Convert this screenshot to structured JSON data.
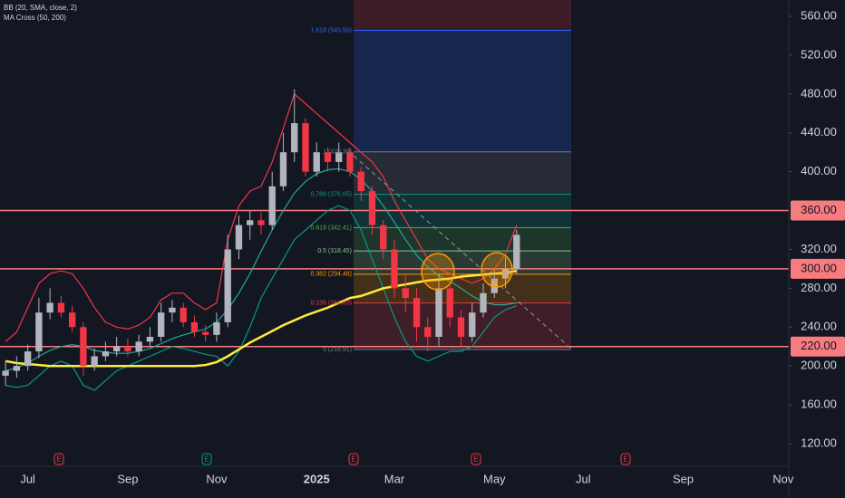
{
  "chart_data": {
    "type": "candlestick",
    "legend": [
      "BB (20, SMA, close, 2)",
      "MA Cross (50, 200)"
    ],
    "categories": [
      null,
      null,
      "Jul",
      null,
      null,
      null,
      null,
      null,
      null,
      null,
      null,
      "Sep",
      null,
      null,
      null,
      null,
      null,
      null,
      null,
      "Nov",
      null,
      null,
      null,
      null,
      null,
      null,
      null,
      null,
      "2025",
      null,
      null,
      null,
      null,
      null,
      null,
      "Mar",
      null,
      null,
      null,
      null,
      null,
      null,
      null,
      null,
      "May",
      null,
      null,
      null,
      null,
      null,
      null,
      null,
      "Jul",
      null,
      null,
      null,
      null,
      null,
      null,
      null,
      null,
      "Sep",
      null,
      null,
      null,
      null,
      null,
      null,
      null,
      null,
      "Nov"
    ],
    "open": [
      190,
      195,
      200,
      215,
      255,
      265,
      255,
      240,
      200,
      210,
      215,
      220,
      215,
      225,
      230,
      255,
      260,
      245,
      235,
      232,
      245,
      320,
      345,
      350,
      345,
      385,
      420,
      450,
      400,
      420,
      410,
      420,
      400,
      380,
      345,
      320,
      280,
      270,
      240,
      230,
      280,
      250,
      230,
      255,
      275,
      290,
      300,
      null,
      null,
      null,
      null,
      null,
      null,
      null,
      null,
      null,
      null,
      null,
      null,
      null,
      null,
      null,
      null,
      null,
      null,
      null,
      null,
      null,
      null,
      null,
      null
    ],
    "high": [
      205,
      210,
      222,
      270,
      280,
      272,
      262,
      245,
      218,
      225,
      230,
      228,
      232,
      240,
      265,
      268,
      265,
      252,
      242,
      255,
      335,
      355,
      360,
      358,
      400,
      440,
      485,
      455,
      430,
      425,
      430,
      425,
      405,
      385,
      350,
      330,
      295,
      280,
      250,
      295,
      285,
      258,
      265,
      285,
      300,
      312,
      340,
      null,
      null,
      null,
      null,
      null,
      null,
      null,
      null,
      null,
      null,
      null,
      null,
      null,
      null,
      null,
      null,
      null,
      null,
      null,
      null,
      null,
      null,
      null,
      null
    ],
    "low": [
      180,
      188,
      195,
      208,
      248,
      250,
      235,
      190,
      195,
      205,
      210,
      210,
      210,
      220,
      225,
      245,
      240,
      230,
      225,
      225,
      240,
      310,
      330,
      335,
      340,
      380,
      410,
      395,
      395,
      400,
      400,
      395,
      370,
      335,
      310,
      270,
      255,
      225,
      215,
      220,
      240,
      220,
      225,
      250,
      270,
      280,
      295,
      null,
      null,
      null,
      null,
      null,
      null,
      null,
      null,
      null,
      null,
      null,
      null,
      null,
      null,
      null,
      null,
      null,
      null,
      null,
      null,
      null,
      null,
      null,
      null
    ],
    "close": [
      195,
      200,
      215,
      255,
      265,
      255,
      240,
      200,
      210,
      215,
      220,
      215,
      225,
      230,
      255,
      260,
      245,
      235,
      232,
      245,
      320,
      345,
      350,
      345,
      385,
      420,
      450,
      400,
      420,
      410,
      420,
      400,
      380,
      345,
      320,
      280,
      270,
      240,
      230,
      280,
      250,
      230,
      255,
      275,
      290,
      300,
      335,
      null,
      null,
      null,
      null,
      null,
      null,
      null,
      null,
      null,
      null,
      null,
      null,
      null,
      null,
      null,
      null,
      null,
      null,
      null,
      null,
      null,
      null,
      null,
      null
    ],
    "up_color": "#b2b5be",
    "down_color": "#f23645",
    "overlays": [
      {
        "color": "#f23645",
        "values": [
          225,
          235,
          260,
          285,
          295,
          298,
          295,
          280,
          260,
          245,
          240,
          238,
          242,
          250,
          268,
          275,
          275,
          265,
          258,
          265,
          330,
          365,
          380,
          385,
          410,
          445,
          480,
          470,
          460,
          450,
          440,
          430,
          420,
          410,
          395,
          370,
          350,
          330,
          310,
          300,
          295,
          290,
          285,
          290,
          300,
          315,
          345,
          null,
          null,
          null,
          null,
          null,
          null,
          null,
          null,
          null,
          null,
          null,
          null,
          null,
          null,
          null,
          null,
          null,
          null,
          null,
          null,
          null,
          null,
          null,
          null
        ]
      },
      {
        "color": "#089981",
        "values": [
          180,
          178,
          180,
          190,
          200,
          205,
          200,
          180,
          175,
          185,
          195,
          200,
          205,
          210,
          215,
          220,
          218,
          215,
          212,
          210,
          200,
          215,
          240,
          270,
          290,
          310,
          330,
          340,
          350,
          360,
          365,
          360,
          340,
          310,
          280,
          250,
          225,
          210,
          205,
          210,
          215,
          215,
          220,
          235,
          250,
          258,
          262,
          null,
          null,
          null,
          null,
          null,
          null,
          null,
          null,
          null,
          null,
          null,
          null,
          null,
          null,
          null,
          null,
          null,
          null,
          null,
          null,
          null,
          null,
          null,
          null
        ]
      },
      {
        "color": "#22ab94",
        "values": [
          195,
          198,
          203,
          210,
          216,
          220,
          222,
          220,
          216,
          214,
          213,
          213,
          215,
          218,
          223,
          228,
          232,
          235,
          238,
          245,
          258,
          275,
          295,
          318,
          340,
          360,
          378,
          390,
          398,
          402,
          403,
          400,
          392,
          380,
          365,
          348,
          330,
          314,
          302,
          293,
          287,
          280,
          272,
          266,
          263,
          263,
          265,
          null,
          null,
          null,
          null,
          null,
          null,
          null,
          null,
          null,
          null,
          null,
          null,
          null,
          null,
          null,
          null,
          null,
          null,
          null,
          null,
          null,
          null,
          null,
          null
        ]
      },
      {
        "color": "#ffeb3b",
        "values": [
          205,
          203,
          202,
          201,
          200,
          200,
          200,
          200,
          200,
          200,
          200,
          200,
          200,
          200,
          200,
          200,
          200,
          200,
          201,
          204,
          210,
          217,
          224,
          230,
          236,
          242,
          247,
          252,
          256,
          260,
          265,
          270,
          272,
          276,
          280,
          282,
          284,
          286,
          288,
          289,
          290,
          292,
          293,
          294,
          295,
          296,
          298,
          null,
          null,
          null,
          null,
          null,
          null,
          null,
          null,
          null,
          null,
          null,
          null,
          null,
          null,
          null,
          null,
          null,
          null,
          null,
          null,
          null,
          null,
          null,
          null
        ]
      }
    ],
    "fib_levels": [
      {
        "value": 545.5,
        "label": "1.618 (545.50)",
        "color": "#2962ff"
      },
      {
        "value": 420.39,
        "label": "1 (420.39)",
        "color": "#787b86"
      },
      {
        "value": 376.65,
        "label": "0.786 (376.65)",
        "color": "#089981"
      },
      {
        "value": 342.41,
        "label": "0.618 (342.41)",
        "color": "#4caf50"
      },
      {
        "value": 318.45,
        "label": "0.5 (318.45)",
        "color": "#81c784"
      },
      {
        "value": 294.48,
        "label": "0.382 (294.48)",
        "color": "#ff9800"
      },
      {
        "value": 264.83,
        "label": "0.236 (264.83)",
        "color": "#f23645"
      },
      {
        "value": 216.91,
        "label": "0 (216.91)",
        "color": "#787b86"
      }
    ],
    "hlines": [
      {
        "value": 360,
        "label": "360.00"
      },
      {
        "value": 300,
        "label": "300.00"
      },
      {
        "value": 220,
        "label": "220.00"
      }
    ],
    "hline_color": "#f77c80",
    "earnings": [
      {
        "label": "E",
        "color": "#f23645"
      },
      {
        "label": "E",
        "color": "#089981"
      },
      {
        "label": "E",
        "color": "#f23645"
      },
      {
        "label": "E",
        "color": "#f23645"
      },
      {
        "label": "E",
        "color": "#f23645"
      }
    ],
    "ylim": [
      120,
      560
    ],
    "yticks": [
      {
        "value": 560,
        "label": "560.00"
      },
      {
        "value": 520,
        "label": "520.00"
      },
      {
        "value": 480,
        "label": "480.00"
      },
      {
        "value": 440,
        "label": "440.00"
      },
      {
        "value": 400,
        "label": "400.00"
      },
      {
        "value": 320,
        "label": "320.00"
      },
      {
        "value": 280,
        "label": "280.00"
      },
      {
        "value": 240,
        "label": "240.00"
      },
      {
        "value": 200,
        "label": "200.00"
      },
      {
        "value": 160,
        "label": "160.00"
      },
      {
        "value": 120,
        "label": "120.00"
      }
    ]
  }
}
